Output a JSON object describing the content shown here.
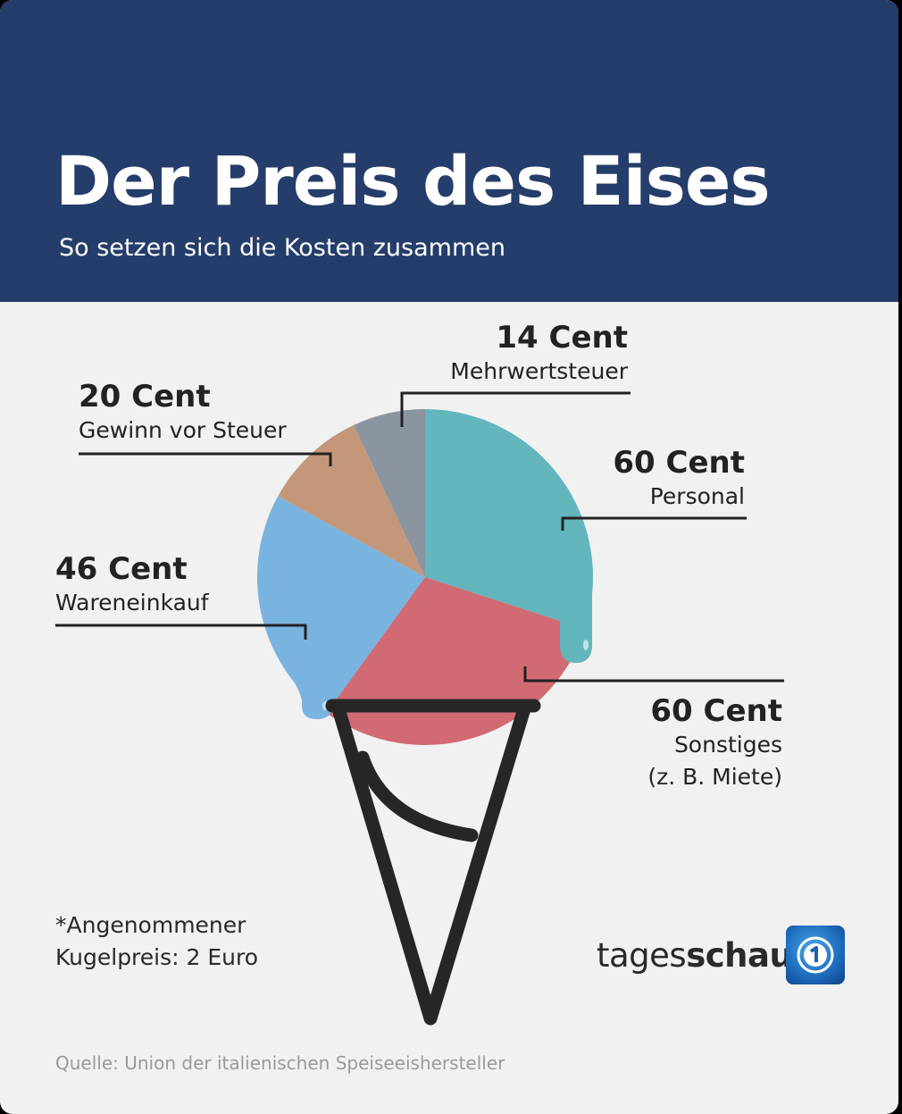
{
  "header": {
    "title": "Der Preis des Eises",
    "subtitle": "So setzen sich die Kosten zusammen"
  },
  "chart_data": {
    "type": "pie",
    "unit": "Cent",
    "total": 200,
    "slices": [
      {
        "value": 60,
        "value_label": "60 Cent",
        "name": "Personal",
        "name_line2": "",
        "color": "#62b6bc"
      },
      {
        "value": 60,
        "value_label": "60 Cent",
        "name": "Sonstiges",
        "name_line2": "(z. B. Miete)",
        "color": "#d16a72"
      },
      {
        "value": 46,
        "value_label": "46 Cent",
        "name": "Wareneinkauf",
        "name_line2": "",
        "color": "#79b3e0"
      },
      {
        "value": 20,
        "value_label": "20 Cent",
        "name": "Gewinn vor Steuer",
        "name_line2": "",
        "color": "#c4977a"
      },
      {
        "value": 14,
        "value_label": "14 Cent",
        "name": "Mehrwertsteuer",
        "name_line2": "",
        "color": "#8a959f"
      }
    ]
  },
  "footnote": {
    "line1": "*Angenommener",
    "line2": "Kugelpreis: 2 Euro"
  },
  "source": "Quelle: Union der italienischen Speiseeishersteller",
  "brand": {
    "part1": "tages",
    "part2": "schau",
    "logo_icon": "ard-one-logo-icon"
  }
}
